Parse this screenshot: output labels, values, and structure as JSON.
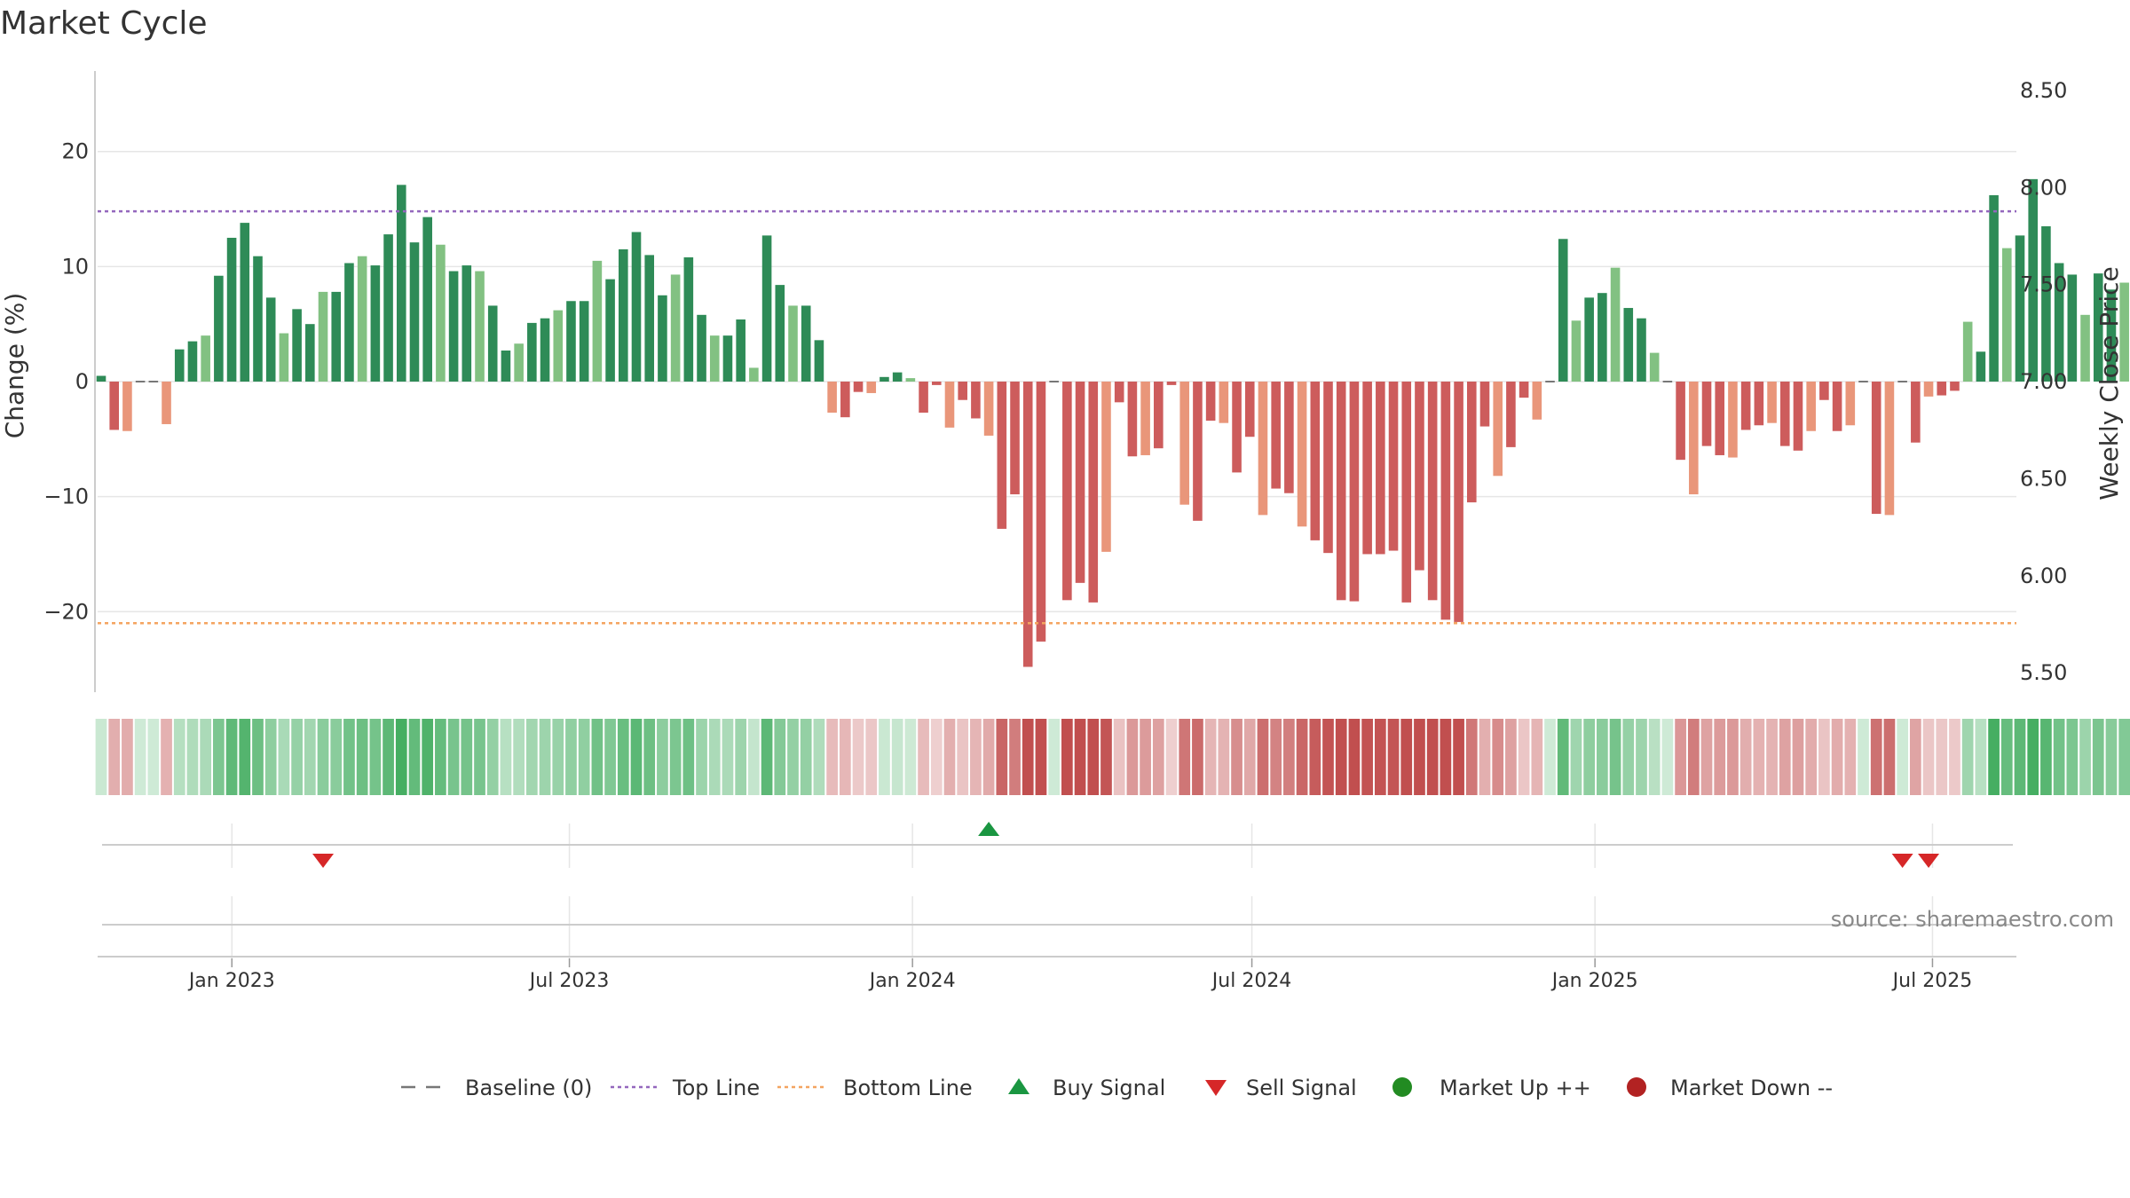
{
  "chart_data": {
    "type": "bar",
    "title": "Market Cycle",
    "ylabel_left": "Change (%)",
    "ylabel_right": "Weekly Close Price",
    "ylim_left": [
      -27,
      27
    ],
    "ylim_right": [
      5.4,
      8.6
    ],
    "yticks_left": [
      -20,
      -10,
      0,
      10,
      20
    ],
    "yticks_left_labels": [
      "−20",
      "−10",
      "0",
      "10",
      "20"
    ],
    "yticks_right": [
      5.5,
      6.0,
      6.5,
      7.0,
      7.5,
      8.0,
      8.5
    ],
    "yticks_right_labels": [
      "5.50",
      "6.00",
      "6.50",
      "7.00",
      "7.50",
      "8.00",
      "8.50"
    ],
    "x_start": "2022-10-21",
    "x_end": "2025-08-15",
    "x_ticks": [
      {
        "date": "2023-01-01",
        "label": "Jan 2023"
      },
      {
        "date": "2023-07-01",
        "label": "Jul 2023"
      },
      {
        "date": "2024-01-01",
        "label": "Jan 2024"
      },
      {
        "date": "2024-07-01",
        "label": "Jul 2024"
      },
      {
        "date": "2025-01-01",
        "label": "Jan 2025"
      },
      {
        "date": "2025-07-01",
        "label": "Jul 2025"
      }
    ],
    "first_week": "2022-10-21",
    "top_line": 14.8,
    "bottom_line": -21.0,
    "baseline": 0,
    "weekly_change": [
      0.5,
      -4.2,
      -4.3,
      0,
      0,
      -3.7,
      2.8,
      3.5,
      4.0,
      9.2,
      12.5,
      13.8,
      10.9,
      7.3,
      4.2,
      6.3,
      5.0,
      7.8,
      7.8,
      10.3,
      10.9,
      10.1,
      12.8,
      17.1,
      12.1,
      14.3,
      11.9,
      9.6,
      10.1,
      9.6,
      6.6,
      2.7,
      3.3,
      5.1,
      5.5,
      6.2,
      7.0,
      7.0,
      10.5,
      8.9,
      11.5,
      13.0,
      11.0,
      7.5,
      9.3,
      10.8,
      5.8,
      4.0,
      4.0,
      5.4,
      1.2,
      12.7,
      8.4,
      6.6,
      6.6,
      3.6,
      -2.7,
      -3.1,
      -0.9,
      -1.0,
      0.4,
      0.8,
      0.3,
      -2.7,
      -0.3,
      -4.0,
      -1.6,
      -3.2,
      -4.7,
      -12.8,
      -9.8,
      -24.8,
      -22.6,
      0,
      -19.0,
      -17.5,
      -19.2,
      -14.8,
      -1.8,
      -6.5,
      -6.4,
      -5.8,
      -0.3,
      -10.7,
      -12.1,
      -3.4,
      -3.6,
      -7.9,
      -4.8,
      -11.6,
      -9.3,
      -9.7,
      -12.6,
      -13.8,
      -14.9,
      -19.0,
      -19.1,
      -15.0,
      -15.0,
      -14.7,
      -19.2,
      -16.4,
      -19.0,
      -20.7,
      -20.9,
      -10.5,
      -3.9,
      -8.2,
      -5.7,
      -1.4,
      -3.3,
      0,
      12.4,
      5.3,
      7.3,
      7.7,
      9.9,
      6.4,
      5.5,
      2.5,
      0,
      -6.8,
      -9.8,
      -5.6,
      -6.4,
      -6.6,
      -4.2,
      -3.8,
      -3.6,
      -5.6,
      -6.0,
      -4.3,
      -1.6,
      -4.3,
      -3.8,
      0,
      -11.5,
      -11.6,
      0,
      -5.3,
      -1.3,
      -1.2,
      -0.8,
      5.2,
      2.6,
      16.2,
      11.6,
      12.7,
      17.6,
      13.5,
      10.3,
      9.3,
      5.8,
      9.4,
      8.0,
      8.6,
      5.9,
      9.4,
      8.6,
      7.8
    ],
    "buy_signals": [
      "2024-02-09"
    ],
    "sell_signals": [
      "2023-02-17",
      "2025-06-13",
      "2025-06-27"
    ],
    "colors": {
      "up_strong": "#2e8b57",
      "up_light": "#82c182",
      "down_strong": "#cd5c5c",
      "down_light": "#e9967a",
      "top_line": "#9467bd",
      "bottom_line": "#f4a460",
      "baseline": "#777777",
      "buy": "#1a9641",
      "sell": "#d62728",
      "market_up": "#228b22",
      "market_down": "#b22222",
      "grid": "#e6e6e6",
      "axis": "#cccccc"
    }
  },
  "legend": [
    {
      "key": "baseline",
      "label": "Baseline (0)"
    },
    {
      "key": "top",
      "label": "Top Line"
    },
    {
      "key": "bottom",
      "label": "Bottom Line"
    },
    {
      "key": "buy",
      "label": "Buy Signal"
    },
    {
      "key": "sell",
      "label": "Sell Signal"
    },
    {
      "key": "up",
      "label": "Market Up ++"
    },
    {
      "key": "down",
      "label": "Market Down --"
    }
  ],
  "source": "source: sharemaestro.com"
}
